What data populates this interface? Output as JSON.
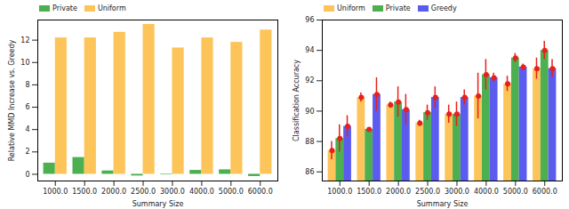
{
  "chart_data": [
    {
      "type": "bar",
      "categories": [
        "1000.0",
        "1500.0",
        "2000.0",
        "2500.0",
        "3000.0",
        "4000.0",
        "5000.0",
        "6000.0"
      ],
      "x_label": "Summary Size",
      "y_label": "Relative MMD Increase vs. Greedy",
      "series": [
        {
          "name": "Private",
          "color": "#4caf50",
          "values": [
            1.0,
            1.5,
            0.3,
            -0.15,
            -0.05,
            0.35,
            0.4,
            -0.2
          ]
        },
        {
          "name": "Uniform",
          "color": "#fcc459",
          "values": [
            12.2,
            12.2,
            12.7,
            13.4,
            11.3,
            12.2,
            11.8,
            12.9
          ]
        }
      ],
      "ylim": [
        -0.6,
        13.8
      ],
      "yticks": [
        0,
        2,
        4,
        6,
        8,
        10,
        12
      ],
      "grid": false,
      "legend": "upper left"
    },
    {
      "type": "bar",
      "categories": [
        "1000.0",
        "1500.0",
        "2000.0",
        "2500.0",
        "3000.0",
        "4000.0",
        "5000.0",
        "6000.0"
      ],
      "x_label": "Summary Size",
      "y_label": "Classification Accuracy",
      "series": [
        {
          "name": "Uniform",
          "color": "#fcc459",
          "values": [
            87.4,
            90.9,
            90.4,
            89.2,
            89.8,
            91.0,
            91.8,
            92.8
          ],
          "errors": [
            0.6,
            0.3,
            0.2,
            0.2,
            0.6,
            1.5,
            0.5,
            0.7
          ]
        },
        {
          "name": "Private",
          "color": "#4caf50",
          "values": [
            88.2,
            88.8,
            90.6,
            89.9,
            89.8,
            92.4,
            93.5,
            94.0
          ],
          "errors": [
            0.9,
            0.1,
            1.0,
            0.5,
            0.8,
            1.0,
            0.3,
            0.6
          ]
        },
        {
          "name": "Greedy",
          "color": "#5b5bf0",
          "values": [
            89.0,
            91.1,
            90.1,
            90.9,
            90.9,
            92.2,
            92.9,
            92.8
          ],
          "errors": [
            0.7,
            1.1,
            1.0,
            0.7,
            0.5,
            0.3,
            0.2,
            0.6
          ]
        }
      ],
      "ylim": [
        85.4,
        96.0
      ],
      "yticks": [
        86,
        88,
        90,
        92,
        94,
        96
      ],
      "grid": false,
      "legend": "upper left"
    }
  ]
}
